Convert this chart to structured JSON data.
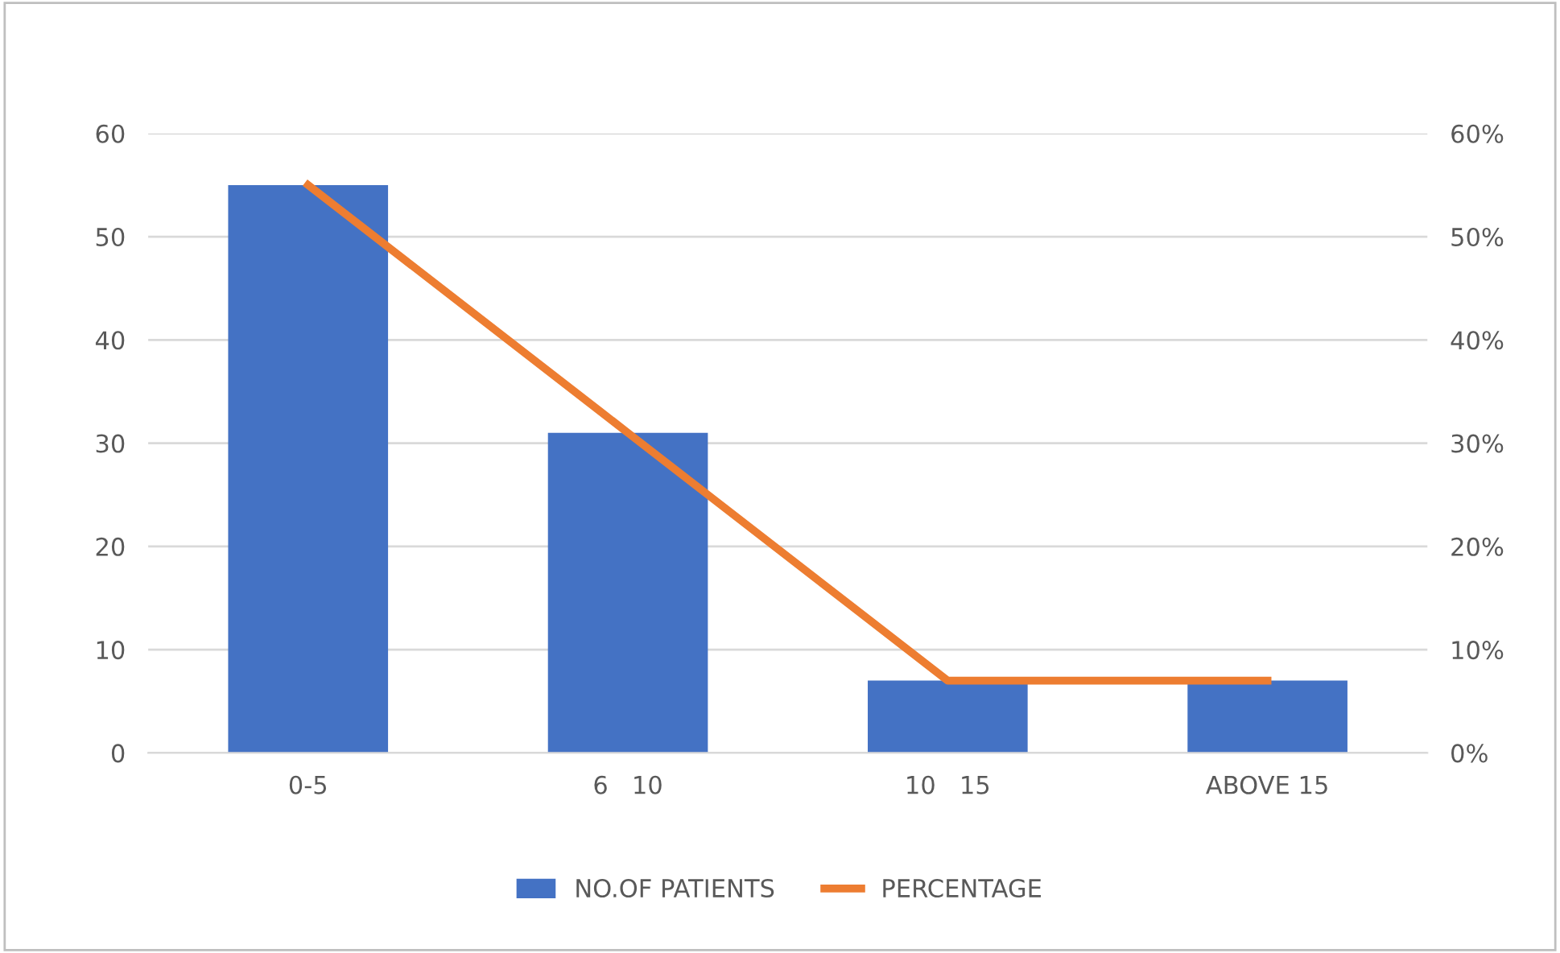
{
  "chart_data": {
    "type": "bar",
    "categories": [
      "0-5",
      "6   10",
      "10   15",
      "ABOVE 15"
    ],
    "series": [
      {
        "name": "NO.OF PATIENTS",
        "color": "#4472c4",
        "values": [
          55,
          31,
          7,
          7
        ]
      },
      {
        "name": "PERCENTAGE",
        "type": "line",
        "axis": "y2",
        "color": "#ed7d31",
        "values": [
          0.55,
          0.31,
          0.07,
          0.07
        ]
      }
    ],
    "ylim": [
      0,
      60
    ],
    "yticks": [
      0,
      10,
      20,
      30,
      40,
      50,
      60
    ],
    "y2lim": [
      0,
      0.6
    ],
    "y2ticks": [
      {
        "value": 0,
        "label": "0%"
      },
      {
        "value": 0.1,
        "label": "10%"
      },
      {
        "value": 0.2,
        "label": "20%"
      },
      {
        "value": 0.3,
        "label": "30%"
      },
      {
        "value": 0.4,
        "label": "40%"
      },
      {
        "value": 0.5,
        "label": "50%"
      },
      {
        "value": 0.6,
        "label": "60%"
      }
    ],
    "grid": "y",
    "legend": "bottom",
    "marker": "none",
    "line_style": "solid"
  }
}
